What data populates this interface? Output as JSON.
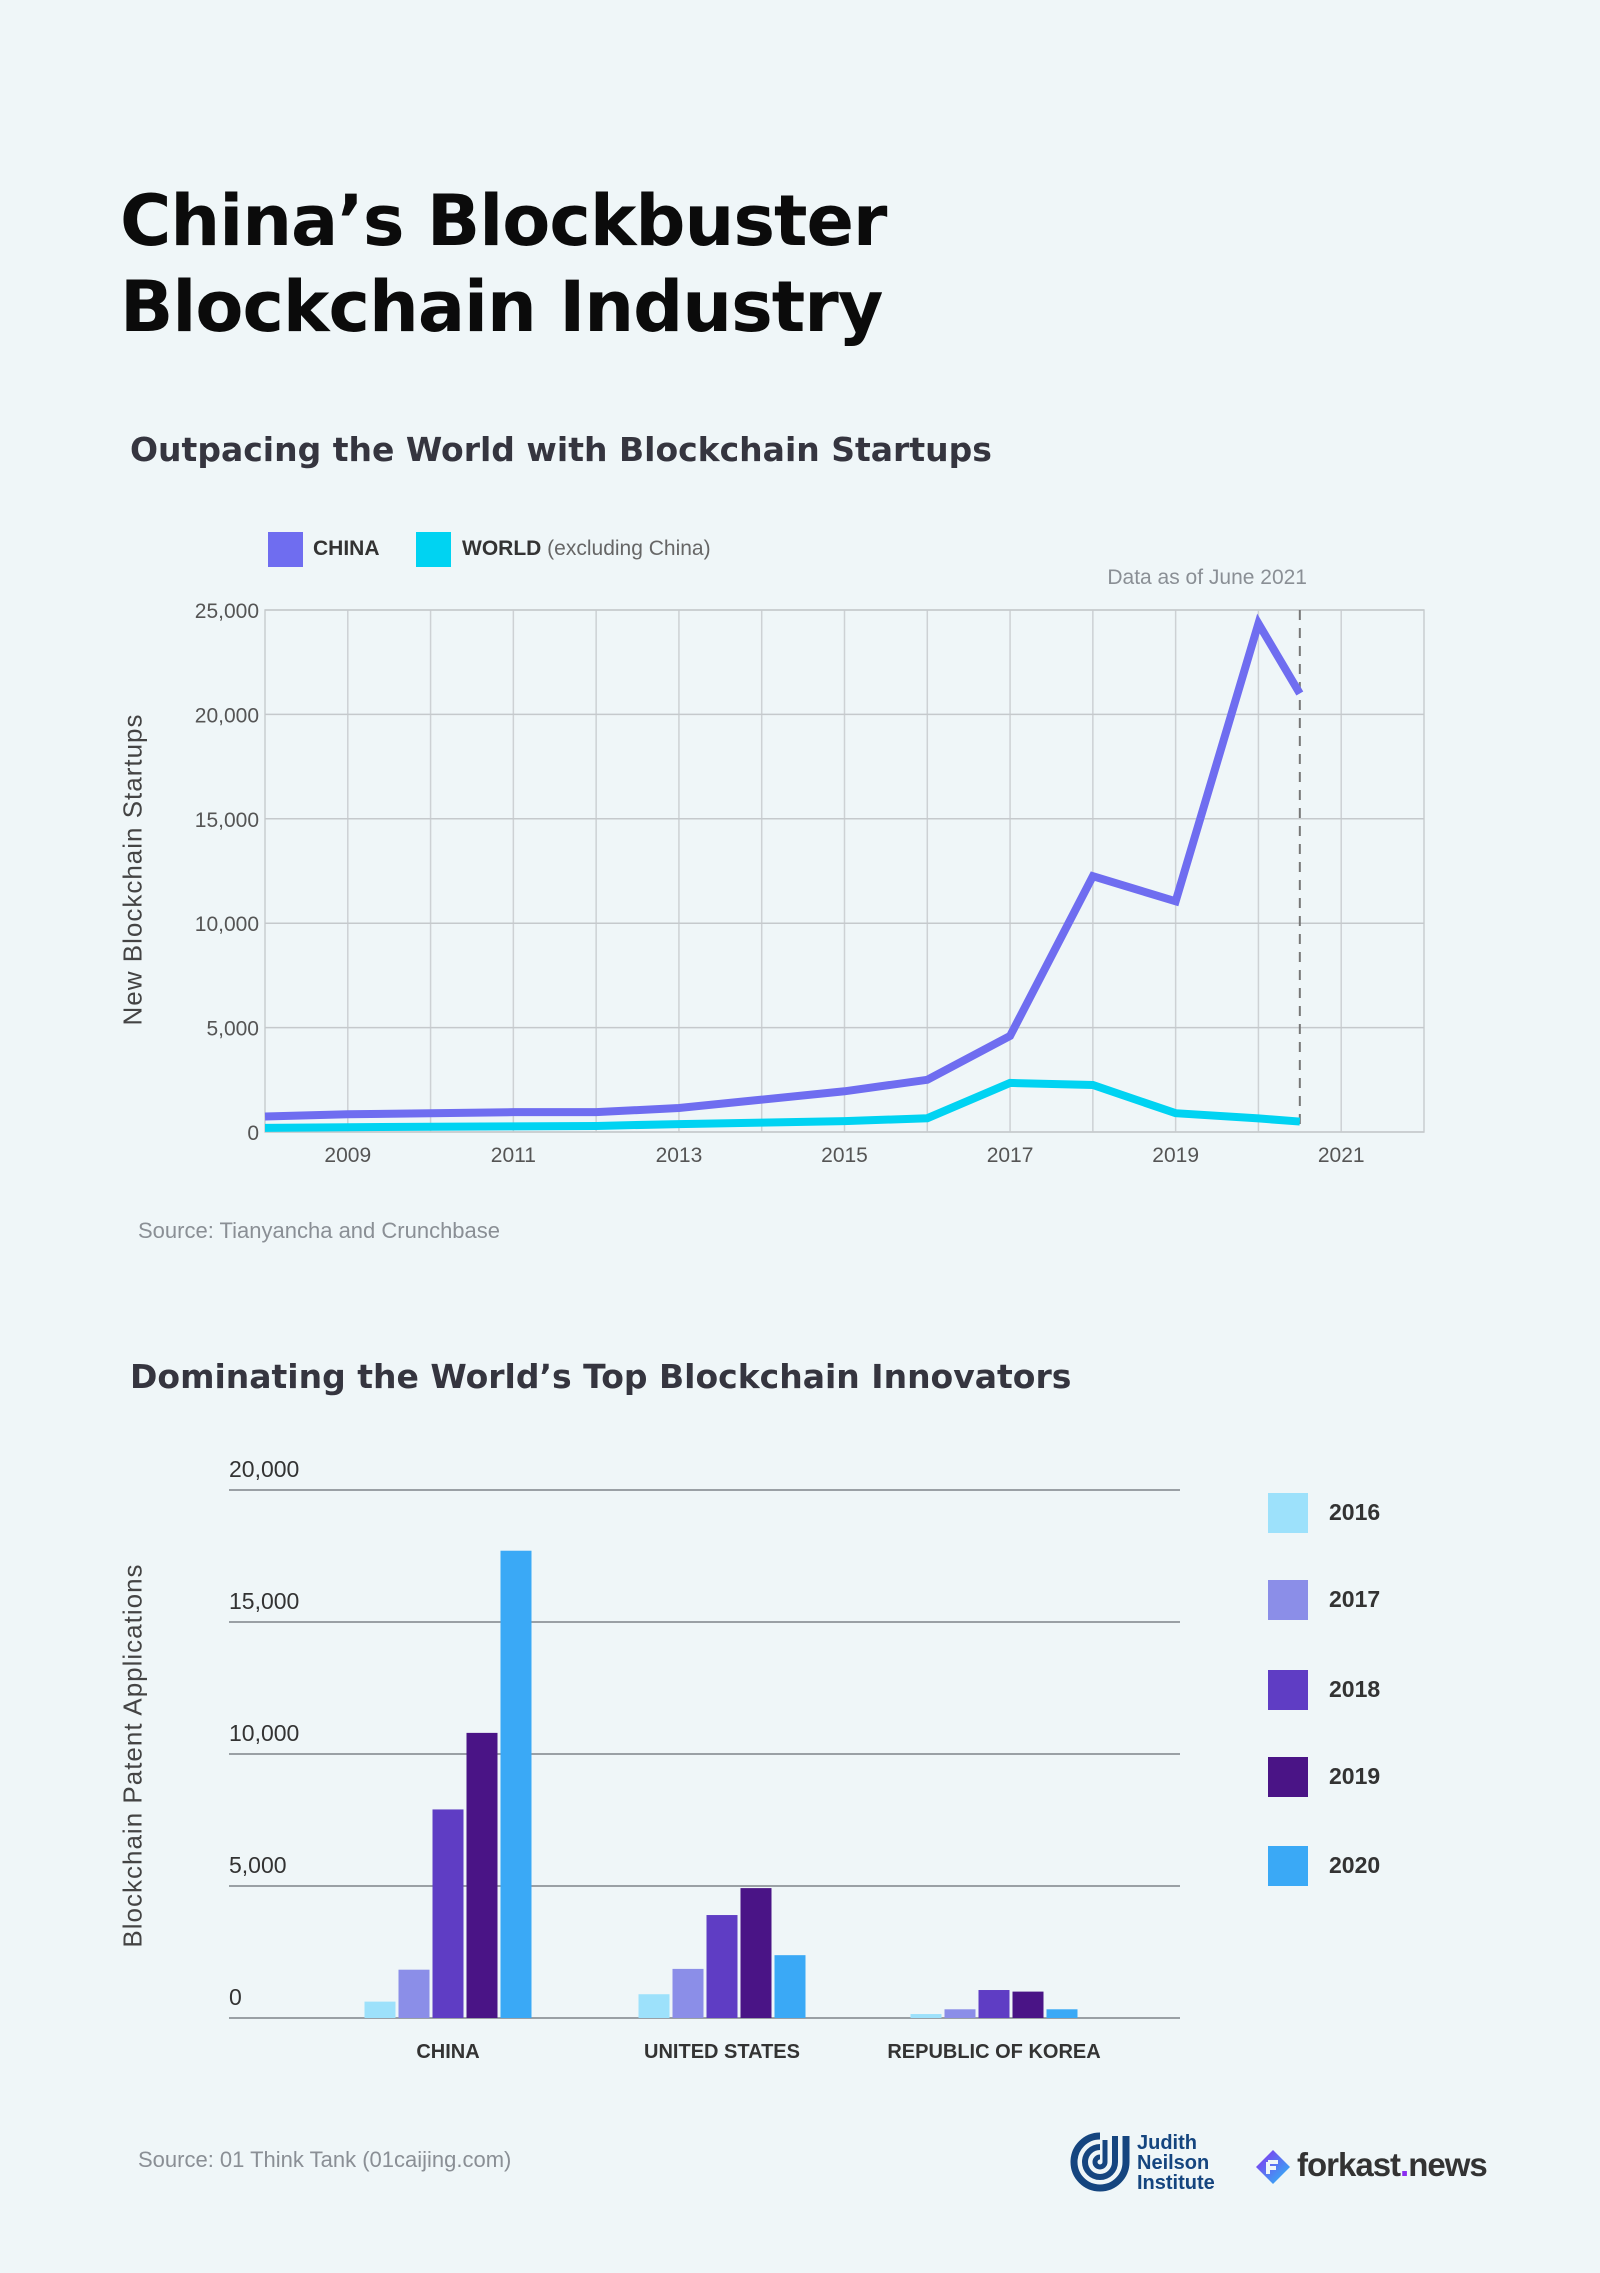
{
  "title_line1": "China’s Blockbuster",
  "title_line2": "Blockchain Industry",
  "colors": {
    "background": "#eff6f8",
    "china": "#6f6df0",
    "world": "#00d3f2"
  },
  "chart_data": [
    {
      "type": "line",
      "title": "Outpacing the World with Blockchain Startups",
      "note": "Data as of June 2021",
      "xlabel": "",
      "ylabel": "New Blockchain Startups",
      "xlim": [
        2008,
        2022
      ],
      "ylim": [
        0,
        25000
      ],
      "yticks": [
        "0",
        "5,000",
        "10,000",
        "15,000",
        "20,000",
        "25,000"
      ],
      "ytick_values": [
        0,
        5000,
        10000,
        15000,
        20000,
        25000
      ],
      "xticks": [
        "2009",
        "2011",
        "2013",
        "2015",
        "2017",
        "2019",
        "2021"
      ],
      "xtick_values": [
        2009,
        2011,
        2013,
        2015,
        2017,
        2019,
        2021
      ],
      "grid": true,
      "legend_position": "top-left",
      "marker_line_x": 2020.5,
      "series": [
        {
          "name": "CHINA",
          "legend_extra": "",
          "color": "#6f6df0",
          "x": [
            2008,
            2009,
            2010,
            2011,
            2012,
            2013,
            2014,
            2015,
            2016,
            2017,
            2018,
            2019,
            2020,
            2020.5
          ],
          "y": [
            740,
            850,
            900,
            950,
            950,
            1150,
            1550,
            1950,
            2500,
            4600,
            12250,
            11050,
            24350,
            21000
          ]
        },
        {
          "name": "WORLD",
          "legend_extra": "(excluding China)",
          "color": "#00d3f2",
          "x": [
            2008,
            2009,
            2010,
            2011,
            2012,
            2013,
            2014,
            2015,
            2016,
            2017,
            2018,
            2019,
            2020,
            2020.5
          ],
          "y": [
            200,
            230,
            250,
            270,
            290,
            380,
            450,
            520,
            660,
            2350,
            2250,
            900,
            650,
            500
          ]
        }
      ],
      "source": "Source: Tianyancha and Crunchbase"
    },
    {
      "type": "bar",
      "title": "Dominating the World’s Top Blockchain Innovators",
      "ylabel": "Blockchain Patent Applications",
      "ylim": [
        0,
        20000
      ],
      "yticks": [
        "0",
        "5,000",
        "10,000",
        "15,000",
        "20,000"
      ],
      "ytick_values": [
        0,
        5000,
        10000,
        15000,
        20000
      ],
      "categories": [
        "CHINA",
        "UNITED STATES",
        "REPUBLIC OF KOREA"
      ],
      "legend_position": "right",
      "series": [
        {
          "name": "2016",
          "color": "#9de1fb",
          "values": [
            620,
            900,
            150
          ]
        },
        {
          "name": "2017",
          "color": "#8b8ee8",
          "values": [
            1830,
            1860,
            330
          ]
        },
        {
          "name": "2018",
          "color": "#5f3dc4",
          "values": [
            7900,
            3900,
            1060
          ]
        },
        {
          "name": "2019",
          "color": "#4a1486",
          "values": [
            10800,
            4920,
            1000
          ]
        },
        {
          "name": "2020",
          "color": "#3aa9f6",
          "values": [
            17700,
            2380,
            330
          ]
        }
      ],
      "source": "Source: 01 Think Tank (01caijing.com)"
    }
  ],
  "logos": {
    "jni": "Judith Neilson Institute",
    "jni_lines": [
      "Judith",
      "Neilson",
      "Institute"
    ],
    "forkast": "forkast",
    "forkast_dot": ".",
    "forkast_tld": "news"
  }
}
